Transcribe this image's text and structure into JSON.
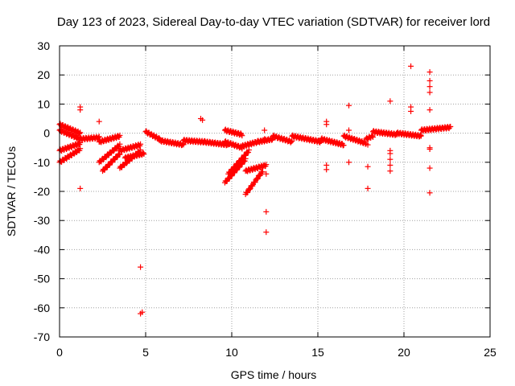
{
  "chart_data": {
    "type": "scatter",
    "title": "Day 123 of 2023, Sidereal Day-to-day VTEC variation (SDTVAR) for receiver lord",
    "xlabel": "GPS time / hours",
    "ylabel": "SDTVAR / TECUs",
    "xlim": [
      0,
      25
    ],
    "ylim": [
      -70,
      30
    ],
    "xticks": [
      0,
      5,
      10,
      15,
      20,
      25
    ],
    "yticks": [
      30,
      20,
      10,
      0,
      -10,
      -20,
      -30,
      -40,
      -50,
      -60,
      -70
    ],
    "grid": true,
    "marker": "+",
    "color": "#ff0000",
    "segments": [
      {
        "x0": 0.0,
        "x1": 1.2,
        "y0": 3.0,
        "y1": 0.0
      },
      {
        "x0": 0.0,
        "x1": 1.2,
        "y0": 1.0,
        "y1": -2.0
      },
      {
        "x0": 0.0,
        "x1": 1.2,
        "y0": -6.0,
        "y1": -3.5
      },
      {
        "x0": 0.0,
        "x1": 1.2,
        "y0": -10.0,
        "y1": -5.5
      },
      {
        "x0": 1.2,
        "x1": 2.3,
        "y0": -2.0,
        "y1": -1.5
      },
      {
        "x0": 2.3,
        "x1": 3.5,
        "y0": -3.0,
        "y1": -1.0
      },
      {
        "x0": 2.3,
        "x1": 3.5,
        "y0": -10.0,
        "y1": -4.0
      },
      {
        "x0": 2.5,
        "x1": 3.5,
        "y0": -13.0,
        "y1": -7.0
      },
      {
        "x0": 3.5,
        "x1": 4.7,
        "y0": -6.0,
        "y1": -4.0
      },
      {
        "x0": 3.5,
        "x1": 4.7,
        "y0": -12.0,
        "y1": -6.0
      },
      {
        "x0": 3.8,
        "x1": 4.9,
        "y0": -8.5,
        "y1": -7.0
      },
      {
        "x0": 5.0,
        "x1": 5.8,
        "y0": 0.5,
        "y1": -2.0
      },
      {
        "x0": 5.8,
        "x1": 7.2,
        "y0": -2.5,
        "y1": -4.0
      },
      {
        "x0": 7.2,
        "x1": 8.4,
        "y0": -2.5,
        "y1": -3.0
      },
      {
        "x0": 8.4,
        "x1": 9.8,
        "y0": -3.0,
        "y1": -4.0
      },
      {
        "x0": 9.6,
        "x1": 10.6,
        "y0": 1.0,
        "y1": -0.5
      },
      {
        "x0": 9.6,
        "x1": 10.6,
        "y0": -3.0,
        "y1": -5.0
      },
      {
        "x0": 10.6,
        "x1": 11.5,
        "y0": -4.5,
        "y1": -3.0
      },
      {
        "x0": 9.6,
        "x1": 10.8,
        "y0": -17.0,
        "y1": -9.0
      },
      {
        "x0": 9.8,
        "x1": 11.0,
        "y0": -14.0,
        "y1": -6.0
      },
      {
        "x0": 10.8,
        "x1": 12.0,
        "y0": -13.0,
        "y1": -11.0
      },
      {
        "x0": 10.8,
        "x1": 11.8,
        "y0": -21.0,
        "y1": -13.0
      },
      {
        "x0": 11.5,
        "x1": 12.4,
        "y0": -3.0,
        "y1": -2.0
      },
      {
        "x0": 12.4,
        "x1": 13.5,
        "y0": -1.0,
        "y1": -3.0
      },
      {
        "x0": 13.5,
        "x1": 15.2,
        "y0": -1.0,
        "y1": -3.0
      },
      {
        "x0": 15.2,
        "x1": 16.5,
        "y0": -2.0,
        "y1": -4.0
      },
      {
        "x0": 16.5,
        "x1": 17.8,
        "y0": -1.0,
        "y1": -3.5
      },
      {
        "x0": 17.8,
        "x1": 18.2,
        "y0": -2.0,
        "y1": -1.0
      },
      {
        "x0": 18.2,
        "x1": 19.6,
        "y0": 0.5,
        "y1": -0.5
      },
      {
        "x0": 19.6,
        "x1": 21.0,
        "y0": 0.0,
        "y1": -1.0
      },
      {
        "x0": 21.0,
        "x1": 22.7,
        "y0": 1.0,
        "y1": 2.0
      }
    ],
    "points": [
      [
        1.2,
        9
      ],
      [
        1.2,
        8
      ],
      [
        1.2,
        -19
      ],
      [
        2.3,
        4
      ],
      [
        3.4,
        -1
      ],
      [
        4.7,
        -46
      ],
      [
        4.8,
        -61.5
      ],
      [
        4.7,
        -62
      ],
      [
        8.2,
        5
      ],
      [
        8.3,
        4.5
      ],
      [
        11.9,
        -2
      ],
      [
        11.9,
        1
      ],
      [
        12.0,
        -14
      ],
      [
        12.0,
        -27
      ],
      [
        12.0,
        -34
      ],
      [
        15.5,
        4
      ],
      [
        15.5,
        3
      ],
      [
        15.5,
        -11
      ],
      [
        15.5,
        -12.5
      ],
      [
        16.8,
        9.5
      ],
      [
        16.8,
        1
      ],
      [
        16.8,
        -10
      ],
      [
        17.9,
        -4
      ],
      [
        17.9,
        -11.5
      ],
      [
        17.9,
        -19
      ],
      [
        19.2,
        11
      ],
      [
        19.2,
        -6
      ],
      [
        19.2,
        -7
      ],
      [
        19.2,
        -9
      ],
      [
        19.2,
        -11
      ],
      [
        19.2,
        -13
      ],
      [
        20.4,
        23
      ],
      [
        20.4,
        9
      ],
      [
        20.4,
        7.5
      ],
      [
        21.5,
        21
      ],
      [
        21.5,
        18
      ],
      [
        21.5,
        16
      ],
      [
        21.5,
        14
      ],
      [
        21.5,
        8
      ],
      [
        21.5,
        -5
      ],
      [
        21.5,
        -5.5
      ],
      [
        21.5,
        -12
      ],
      [
        21.5,
        -20.5
      ]
    ]
  }
}
